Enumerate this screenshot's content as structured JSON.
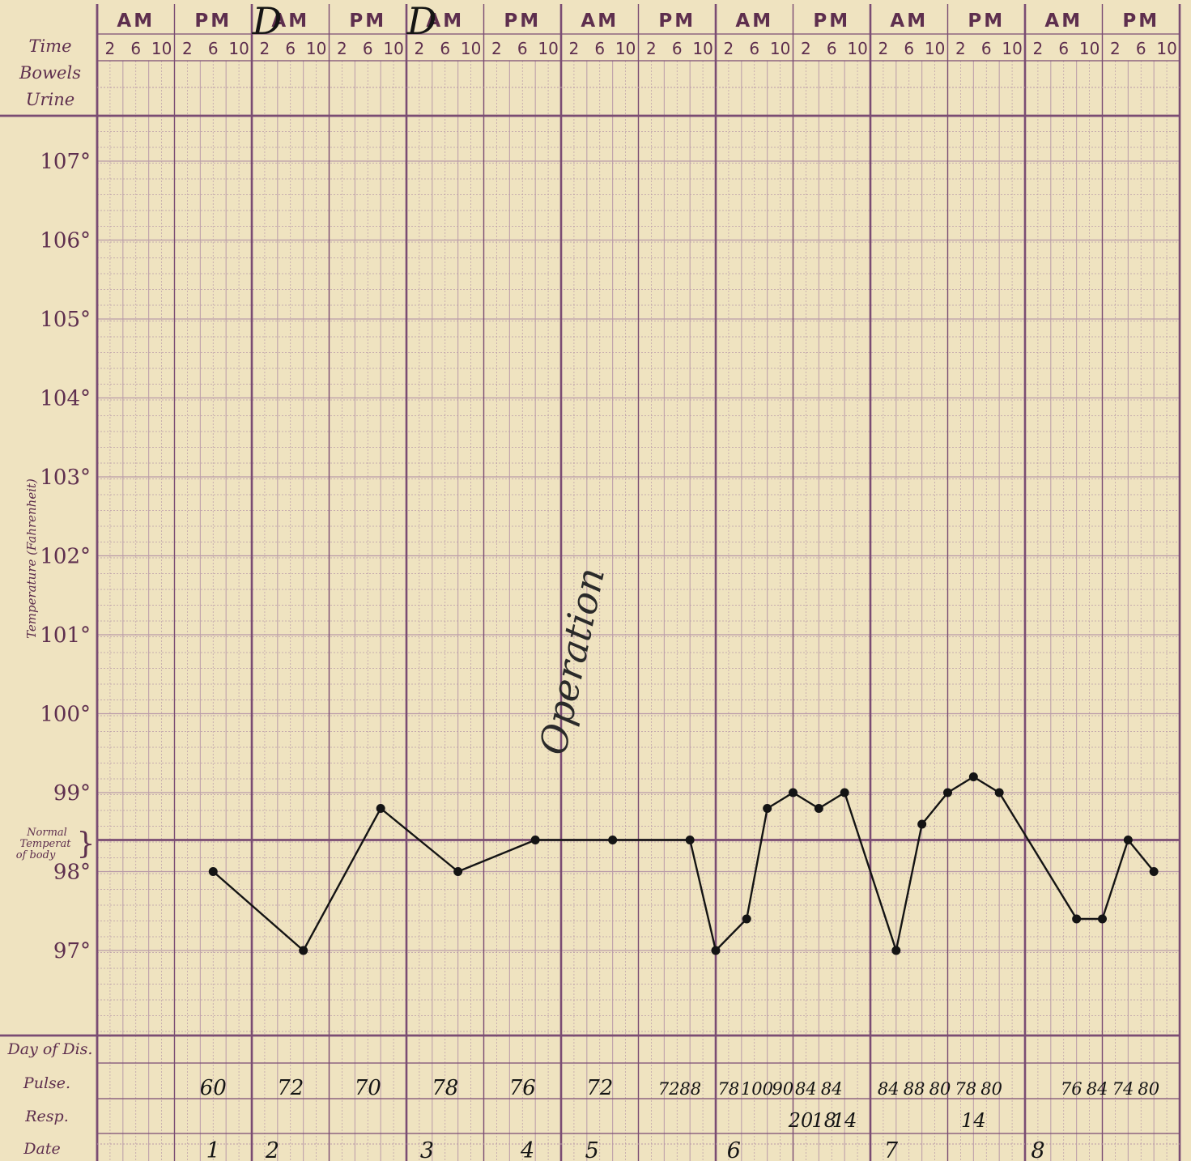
{
  "header": {
    "am_label": "AM",
    "pm_label": "PM",
    "hours": [
      "2",
      "6",
      "10",
      "2",
      "6",
      "10"
    ],
    "row_labels": {
      "time": "Time",
      "bowels": "Bowels",
      "urine": "Urine"
    },
    "handwritten_marks": [
      "D",
      "D"
    ]
  },
  "left_axis": {
    "title": "Temperature (Fahrenheit)",
    "normal_label": [
      "Normal",
      "Temperat",
      "of body"
    ]
  },
  "bottom_rows": {
    "day_label": "Day of Dis.",
    "pulse_label": "Pulse.",
    "resp_label": "Resp.",
    "date_label": "Date",
    "pulse_values": [
      "60",
      "72",
      "70",
      "78",
      "76",
      "72",
      "7288",
      "78",
      "100",
      "90",
      "84",
      "84",
      "84",
      "88",
      "80",
      "78",
      "80",
      "76",
      "84",
      "74",
      "80"
    ],
    "resp_values": [
      "20",
      "18",
      "14",
      "14"
    ],
    "dates": [
      "1",
      "2",
      "3",
      "4",
      "5",
      "6",
      "7",
      "8"
    ]
  },
  "annotation": {
    "text": "Operation"
  },
  "colors": {
    "paper": "#efe3c0",
    "grid_major": "#7a4c73",
    "grid_minor": "#b99aa8",
    "ink": "#141414",
    "print": "#5e2f4e"
  },
  "chart_data": {
    "type": "line",
    "title": "",
    "xlabel": "",
    "ylabel": "Temperature (Fahrenheit)",
    "ylim": [
      96,
      108
    ],
    "y_ticks": [
      "97°",
      "98°",
      "99°",
      "100°",
      "101°",
      "102°",
      "103°",
      "104°",
      "105°",
      "106°",
      "107°"
    ],
    "normal_temperature": 98.4,
    "grid": true,
    "x_unit": "2 and 6 PM of day 1 through 6 PM of day 8, read-off positions in 4-hour slots of 24 per 4-day block",
    "points": [
      {
        "slot": 4.5,
        "temp": 98.0
      },
      {
        "slot": 8,
        "temp": 97.0
      },
      {
        "slot": 11,
        "temp": 98.8
      },
      {
        "slot": 14,
        "temp": 98.0
      },
      {
        "slot": 17,
        "temp": 98.4
      },
      {
        "slot": 20,
        "temp": 98.4
      },
      {
        "slot": 23,
        "temp": 98.4
      },
      {
        "slot": 24,
        "temp": 97.0
      },
      {
        "slot": 25.2,
        "temp": 97.4
      },
      {
        "slot": 26,
        "temp": 98.8
      },
      {
        "slot": 27,
        "temp": 99.0
      },
      {
        "slot": 28,
        "temp": 98.8
      },
      {
        "slot": 29,
        "temp": 99.0
      },
      {
        "slot": 31,
        "temp": 97.0
      },
      {
        "slot": 32,
        "temp": 98.6
      },
      {
        "slot": 33,
        "temp": 99.0
      },
      {
        "slot": 34,
        "temp": 99.2
      },
      {
        "slot": 35,
        "temp": 99.0
      },
      {
        "slot": 38,
        "temp": 97.4
      },
      {
        "slot": 39,
        "temp": 97.4
      },
      {
        "slot": 40,
        "temp": 98.4
      },
      {
        "slot": 41,
        "temp": 98.0
      }
    ]
  }
}
